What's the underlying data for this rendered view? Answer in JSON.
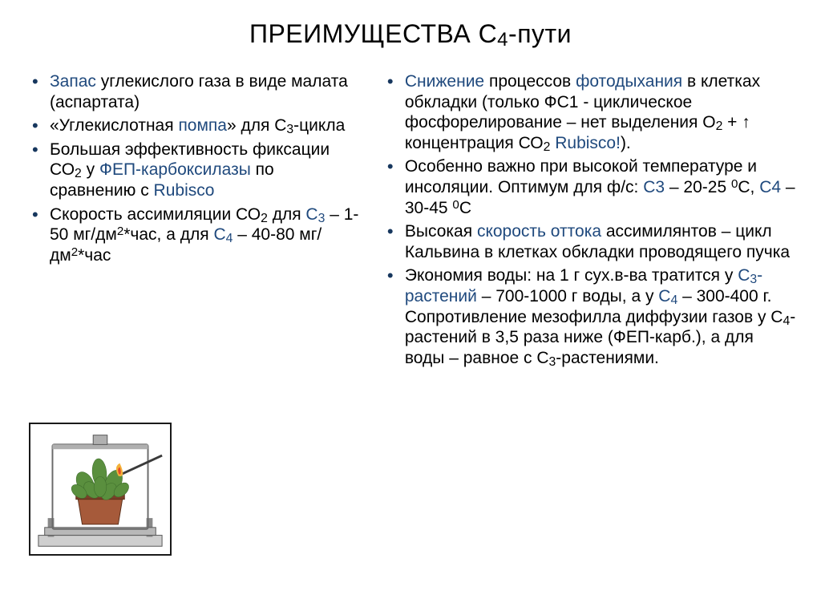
{
  "title_pre": "ПРЕИМУЩЕСТВА С",
  "title_sub": "4",
  "title_post": "-пути",
  "left": [
    {
      "parts": [
        {
          "t": "span",
          "txt": "Запас",
          "cls": "hl"
        },
        {
          "t": "txt",
          "txt": " углекислого газа в виде малата (аспартата)"
        }
      ]
    },
    {
      "parts": [
        {
          "t": "txt",
          "txt": "«Углекислотная "
        },
        {
          "t": "span",
          "txt": "помпа",
          "cls": "hl"
        },
        {
          "t": "txt",
          "txt": "» для С"
        },
        {
          "t": "sub",
          "txt": "3"
        },
        {
          "t": "txt",
          "txt": "-цикла"
        }
      ]
    },
    {
      "parts": [
        {
          "t": "txt",
          "txt": "Большая эффективность фиксации СО"
        },
        {
          "t": "sub",
          "txt": "2"
        },
        {
          "t": "txt",
          "txt": " у "
        },
        {
          "t": "span",
          "txt": "ФЕП-карбоксилазы",
          "cls": "hl"
        },
        {
          "t": "txt",
          "txt": " по сравнению с "
        },
        {
          "t": "span",
          "txt": "Rubisco",
          "cls": "hl"
        }
      ]
    },
    {
      "parts": [
        {
          "t": "txt",
          "txt": "Скорость ассимиляции СО"
        },
        {
          "t": "sub",
          "txt": "2"
        },
        {
          "t": "txt",
          "txt": " для "
        },
        {
          "t": "span",
          "txt": "С",
          "cls": "hl"
        },
        {
          "t": "sub",
          "txt": "3",
          "cls": "hl"
        },
        {
          "t": "txt",
          "txt": " – 1-50 мг/дм"
        },
        {
          "t": "sup",
          "txt": "2"
        },
        {
          "t": "txt",
          "txt": "*час, а для "
        },
        {
          "t": "span",
          "txt": "С",
          "cls": "hl"
        },
        {
          "t": "sub",
          "txt": "4",
          "cls": "hl"
        },
        {
          "t": "txt",
          "txt": " – 40-80 мг/дм"
        },
        {
          "t": "sup",
          "txt": "2"
        },
        {
          "t": "txt",
          "txt": "*час"
        }
      ]
    }
  ],
  "right": [
    {
      "parts": [
        {
          "t": "span",
          "txt": "Снижение",
          "cls": "hl"
        },
        {
          "t": "txt",
          "txt": " процессов "
        },
        {
          "t": "span",
          "txt": "фотодыхания",
          "cls": "hl"
        },
        {
          "t": "txt",
          "txt": " в клетках обкладки (только ФС1 - циклическое фосфорелирование – нет выделения О"
        },
        {
          "t": "sub",
          "txt": "2"
        },
        {
          "t": "txt",
          "txt": " + ↑ концентрация СО"
        },
        {
          "t": "sub",
          "txt": "2"
        },
        {
          "t": "txt",
          "txt": " "
        },
        {
          "t": "span",
          "txt": "Rubisco!",
          "cls": "hl"
        },
        {
          "t": "txt",
          "txt": ")."
        }
      ]
    },
    {
      "parts": [
        {
          "t": "txt",
          "txt": "Особенно важно при высокой температуре и инсоляции. Оптимум для ф/с: "
        },
        {
          "t": "span",
          "txt": "С3",
          "cls": "hl"
        },
        {
          "t": "txt",
          "txt": " – 20-25 "
        },
        {
          "t": "sup",
          "txt": "0"
        },
        {
          "t": "txt",
          "txt": "С, "
        },
        {
          "t": "span",
          "txt": "С4",
          "cls": "hl"
        },
        {
          "t": "txt",
          "txt": " – 30-45 "
        },
        {
          "t": "sup",
          "txt": "0"
        },
        {
          "t": "txt",
          "txt": "С"
        }
      ]
    },
    {
      "parts": [
        {
          "t": "txt",
          "txt": "Высокая "
        },
        {
          "t": "span",
          "txt": "скорость оттока",
          "cls": "hl"
        },
        {
          "t": "txt",
          "txt": " ассимилянтов – цикл Кальвина в клетках обкладки проводящего пучка"
        }
      ]
    },
    {
      "parts": [
        {
          "t": "txt",
          "txt": "Экономия воды: на 1 г сух.в-ва тратится у "
        },
        {
          "t": "span",
          "txt": "С",
          "cls": "hl"
        },
        {
          "t": "sub",
          "txt": "3",
          "cls": "hl"
        },
        {
          "t": "span",
          "txt": "-растений",
          "cls": "hl"
        },
        {
          "t": "txt",
          "txt": " – 700-1000 г воды, а у "
        },
        {
          "t": "span",
          "txt": "С",
          "cls": "hl"
        },
        {
          "t": "sub",
          "txt": "4",
          "cls": "hl"
        },
        {
          "t": "txt",
          "txt": " – 300-400 г. Сопротивление мезофилла диффузии газов у С"
        },
        {
          "t": "sub",
          "txt": "4"
        },
        {
          "t": "txt",
          "txt": "-растений в 3,5 раза ниже (ФЕП-карб.), а для воды – равное с С"
        },
        {
          "t": "sub",
          "txt": "3"
        },
        {
          "t": "txt",
          "txt": "-растениями."
        }
      ]
    }
  ],
  "colors": {
    "highlight": "#1f497d",
    "bullet": "#17375e",
    "text": "#000000",
    "background": "#ffffff",
    "illus_border": "#1a1a1a",
    "pot": "#a65a3a",
    "pot_shade": "#7a3f28",
    "plant": "#5a8f3e",
    "plant_dark": "#3f6e2c",
    "flame_outer": "#f4b23a",
    "flame_inner": "#e24a2a",
    "match": "#3a3a3a",
    "base": "#888888",
    "glass": "#dadada"
  }
}
